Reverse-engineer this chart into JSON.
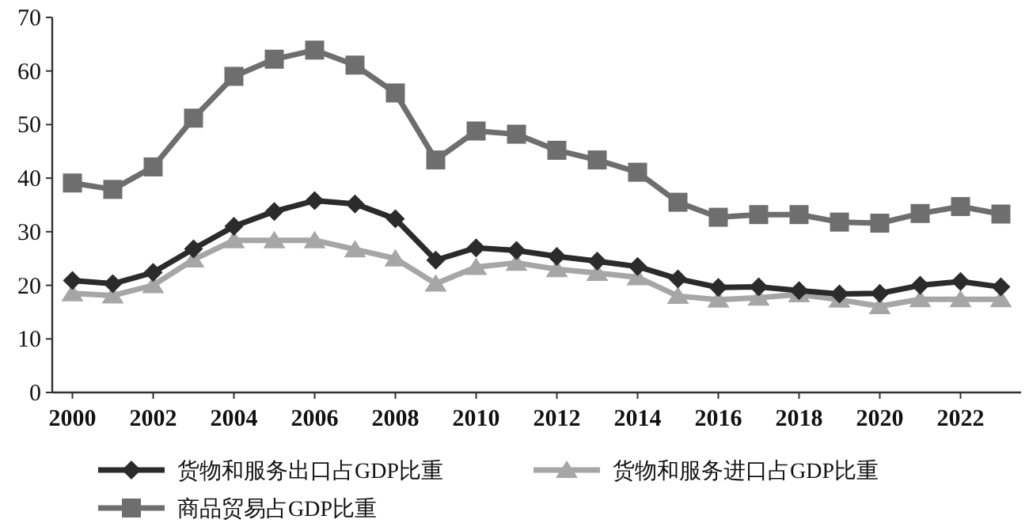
{
  "chart_data": {
    "type": "line",
    "x": [
      2000,
      2001,
      2002,
      2003,
      2004,
      2005,
      2006,
      2007,
      2008,
      2009,
      2010,
      2011,
      2012,
      2013,
      2014,
      2015,
      2016,
      2017,
      2018,
      2019,
      2020,
      2021,
      2022,
      2023
    ],
    "xlim": [
      1999.5,
      2023.5
    ],
    "xticks": [
      2000,
      2002,
      2004,
      2006,
      2008,
      2010,
      2012,
      2014,
      2016,
      2018,
      2020,
      2022
    ],
    "ylim": [
      0,
      70
    ],
    "yticks": [
      0,
      10,
      20,
      30,
      40,
      50,
      60,
      70
    ],
    "legend": "bottom",
    "series": [
      {
        "name": "货物和服务出口占GDP比重",
        "color": "#2b2b2b",
        "marker": "diamond",
        "values": [
          20.9,
          20.3,
          22.4,
          26.8,
          31.0,
          33.8,
          35.8,
          35.2,
          32.4,
          24.7,
          27.0,
          26.5,
          25.4,
          24.5,
          23.5,
          21.2,
          19.6,
          19.7,
          19.0,
          18.4,
          18.5,
          20.0,
          20.7,
          19.7
        ]
      },
      {
        "name": "货物和服务进口占GDP比重",
        "color": "#a6a6a6",
        "marker": "triangle",
        "values": [
          18.5,
          18.1,
          20.0,
          24.8,
          28.4,
          28.4,
          28.4,
          26.7,
          25.0,
          20.3,
          23.4,
          24.2,
          23.0,
          22.3,
          21.5,
          18.0,
          17.3,
          17.7,
          18.3,
          17.3,
          16.1,
          17.4,
          17.4,
          17.4
        ]
      },
      {
        "name": "商品贸易占GDP比重",
        "color": "#6e6e6e",
        "marker": "square",
        "values": [
          39.1,
          37.9,
          42.1,
          51.2,
          59.0,
          62.2,
          63.9,
          61.1,
          55.9,
          43.4,
          48.8,
          48.2,
          45.2,
          43.4,
          41.1,
          35.5,
          32.7,
          33.2,
          33.2,
          31.8,
          31.6,
          33.4,
          34.7,
          33.3
        ]
      }
    ]
  }
}
